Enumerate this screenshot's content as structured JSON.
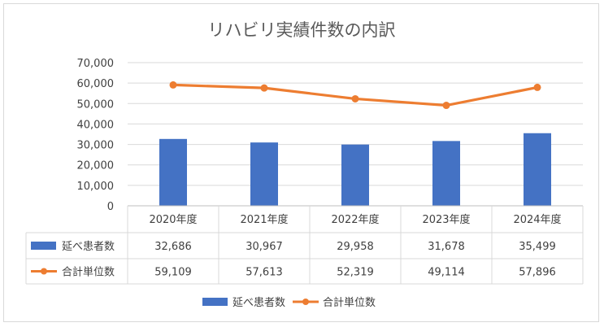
{
  "chart_data": {
    "type": "bar+line",
    "title": "リハビリ実績件数の内訳",
    "categories": [
      "2020年度",
      "2021年度",
      "2022年度",
      "2023年度",
      "2024年度"
    ],
    "ylim": [
      0,
      70000
    ],
    "yticks": [
      "70,000",
      "60,000",
      "50,000",
      "40,000",
      "30,000",
      "20,000",
      "10,000",
      "0"
    ],
    "ytick_values": [
      70000,
      60000,
      50000,
      40000,
      30000,
      20000,
      10000,
      0
    ],
    "grid": true,
    "legend_position": "bottom",
    "data_table": true,
    "series": [
      {
        "name": "延べ患者数",
        "kind": "bar",
        "color": "#4472c4",
        "values": [
          32686,
          30967,
          29958,
          31678,
          35499
        ],
        "labels": [
          "32,686",
          "30,967",
          "29,958",
          "31,678",
          "35,499"
        ]
      },
      {
        "name": "合計単位数",
        "kind": "line",
        "color": "#ed7d31",
        "values": [
          59109,
          57613,
          52319,
          49114,
          57896
        ],
        "labels": [
          "59,109",
          "57,613",
          "52,319",
          "49,114",
          "57,896"
        ]
      }
    ]
  }
}
